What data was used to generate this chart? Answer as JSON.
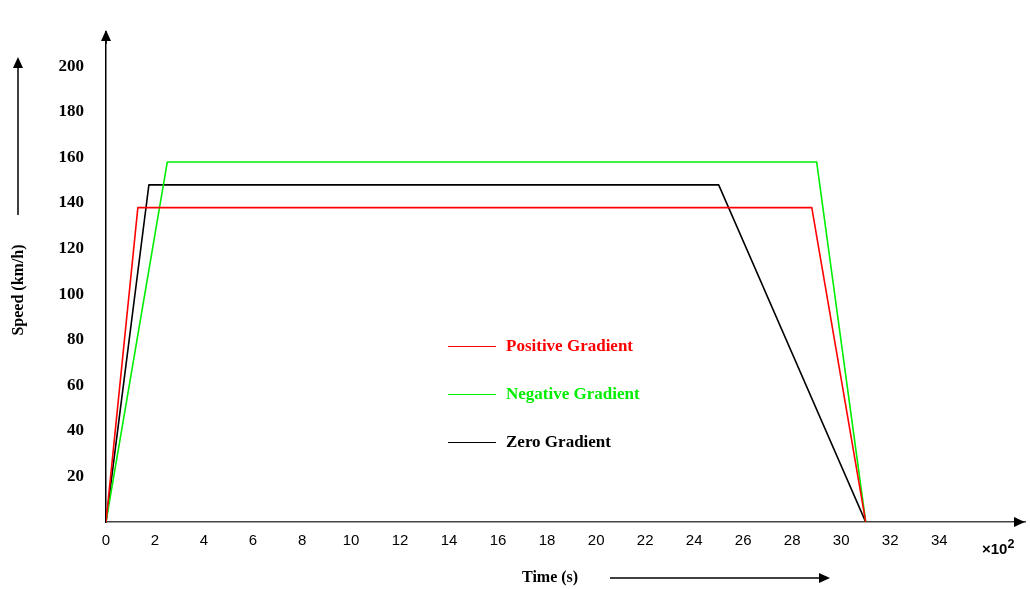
{
  "chart_data": {
    "type": "line",
    "xlabel": "Time (s)",
    "ylabel": "Speed (km/h)",
    "xlim": [
      0,
      37.5
    ],
    "xticks": [
      0,
      2,
      4,
      6,
      8,
      10,
      12,
      14,
      16,
      18,
      20,
      22,
      24,
      26,
      28,
      30,
      32,
      34
    ],
    "ylim": [
      0,
      215
    ],
    "yticks": [
      20,
      40,
      60,
      80,
      100,
      120,
      140,
      160,
      180,
      200
    ],
    "grid": false,
    "legend": "center",
    "annotations": [
      "×10$^{2}$"
    ],
    "series": [
      {
        "name": "Positive Gradient",
        "color": "#ff0000",
        "x": [
          0,
          1.3,
          28.8,
          31
        ],
        "values": [
          0,
          138,
          138,
          0
        ]
      },
      {
        "name": "Negative Gradient",
        "color": "#00ee00",
        "x": [
          0,
          2.5,
          29,
          31
        ],
        "values": [
          0,
          158,
          158,
          0
        ]
      },
      {
        "name": "Zero Gradient",
        "color": "#000000",
        "x": [
          0,
          1.75,
          25,
          31
        ],
        "values": [
          0,
          148,
          148,
          0
        ]
      }
    ]
  }
}
